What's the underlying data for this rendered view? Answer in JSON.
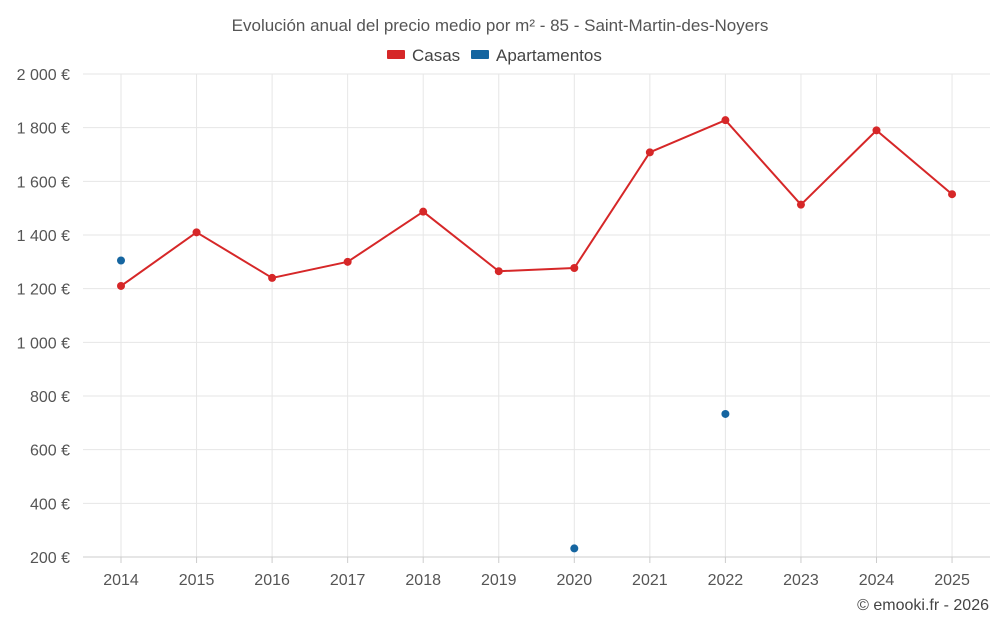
{
  "chart_data": {
    "type": "line",
    "title": "Evolución anual del precio medio por m² - 85 - Saint-Martin-des-Noyers",
    "xlabel": "",
    "ylabel": "",
    "categories": [
      "2014",
      "2015",
      "2016",
      "2017",
      "2018",
      "2019",
      "2020",
      "2021",
      "2022",
      "2023",
      "2024",
      "2025"
    ],
    "ylim": [
      200,
      2000
    ],
    "yticks": [
      200,
      400,
      600,
      800,
      1000,
      1200,
      1400,
      1600,
      1800,
      2000
    ],
    "ytick_labels": [
      "200 €",
      "400 €",
      "600 €",
      "800 €",
      "1 000 €",
      "1 200 €",
      "1 400 €",
      "1 600 €",
      "1 800 €",
      "2 000 €"
    ],
    "grid": true,
    "legend_position": "top-center",
    "series": [
      {
        "name": "Casas",
        "color": "#d62728",
        "style": "line",
        "values": [
          1210,
          1410,
          1240,
          1300,
          1487,
          1265,
          1277,
          1708,
          1828,
          1513,
          1790,
          1552
        ]
      },
      {
        "name": "Apartamentos",
        "color": "#1565a0",
        "style": "scatter",
        "values": [
          1305,
          null,
          null,
          null,
          null,
          null,
          232,
          null,
          733,
          null,
          null,
          null
        ]
      }
    ],
    "credit": "© emooki.fr - 2026"
  }
}
